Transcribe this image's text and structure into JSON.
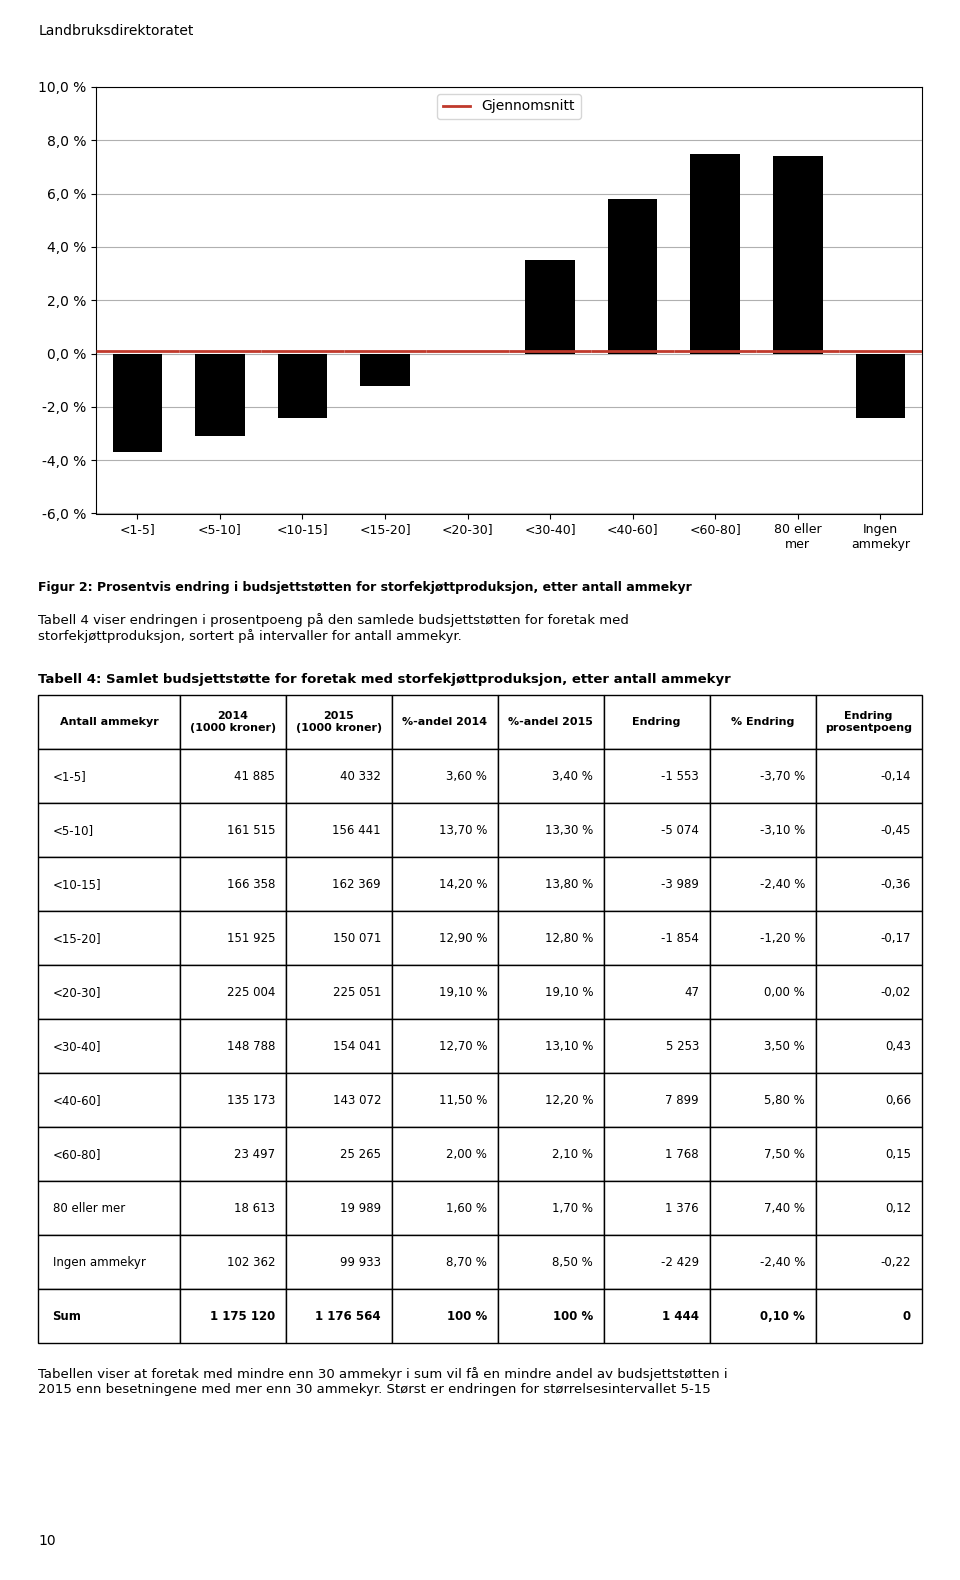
{
  "chart_data": [
    {
      "type": "bar",
      "title": "Figur 2: Prosentvis endring i budsjettstøtten for storfekjøttproduksjon, etter antall ammekyr",
      "annotations": [
        "Landbruksdirektoratet",
        "Tabell 4 viser endringen i prosentpoeng på den samlede budsjettstøtten for foretak med\nstorfekjøttproduksjon, sortert på intervaller for antall ammekyr."
      ],
      "categories": [
        "<1-5]",
        "<5-10]",
        "<10-15]",
        "<15-20]",
        "<20-30]",
        "<30-40]",
        "<40-60]",
        "<60-80]",
        "80 eller\nmer",
        "Ingen\nammekyr"
      ],
      "series": [
        {
          "type": "bar",
          "color": "#000000",
          "values": [
            -3.7,
            -3.1,
            -2.4,
            -1.2,
            0.0,
            3.5,
            5.8,
            7.5,
            7.4,
            -2.4
          ]
        },
        {
          "type": "line",
          "name": "Gjennomsnitt",
          "color": "#c0392b",
          "line_style": "solid",
          "values": [
            0.1,
            0.1,
            0.1,
            0.1,
            0.1,
            0.1,
            0.1,
            0.1,
            0.1,
            0.1
          ]
        }
      ],
      "ylim": [
        -6.0,
        10.0
      ],
      "yticks": [
        {
          "value": -6.0,
          "label": "-6,0 %"
        },
        {
          "value": -4.0,
          "label": "-4,0 %"
        },
        {
          "value": -2.0,
          "label": "-2,0 %"
        },
        {
          "value": 0.0,
          "label": "0,0 %"
        },
        {
          "value": 2.0,
          "label": "2,0 %"
        },
        {
          "value": 4.0,
          "label": "4,0 %"
        },
        {
          "value": 6.0,
          "label": "6,0 %"
        },
        {
          "value": 8.0,
          "label": "8,0 %"
        },
        {
          "value": 10.0,
          "label": "10,0 %"
        }
      ],
      "grid": true,
      "legend": "upper center"
    },
    {
      "type": "table",
      "title": "Tabell 4: Samlet budsjettstøtte for foretak med storfekjøttproduksjon, etter antall ammekyr",
      "annotations": [
        "Tabellen viser at foretak med mindre enn 30 ammekyr i sum vil få en mindre andel av budsjettstøtten i\n2015 enn besetningene med mer enn 30 ammekyr. Størst er endringen for størrelsesintervallet 5-15",
        "10"
      ],
      "xlabel": "Antall ammekyr",
      "categories": [
        "<1-5]",
        "<5-10]",
        "<10-15]",
        "<15-20]",
        "<20-30]",
        "<30-40]",
        "<40-60]",
        "<60-80]",
        "80 eller mer",
        "Ingen ammekyr",
        "Sum"
      ],
      "series": [
        {
          "name": "2014\n(1000 kroner)",
          "values": [
            41885,
            161515,
            166358,
            151925,
            225004,
            148788,
            135173,
            23497,
            18613,
            102362,
            1175120
          ],
          "value_labels": [
            "41 885",
            "161 515",
            "166 358",
            "151 925",
            "225 004",
            "148 788",
            "135 173",
            "23 497",
            "18 613",
            "102 362",
            "1 175 120"
          ]
        },
        {
          "name": "2015\n(1000 kroner)",
          "values": [
            40332,
            156441,
            162369,
            150071,
            225051,
            154041,
            143072,
            25265,
            19989,
            99933,
            1176564
          ],
          "value_labels": [
            "40 332",
            "156 441",
            "162 369",
            "150 071",
            "225 051",
            "154 041",
            "143 072",
            "25 265",
            "19 989",
            "99 933",
            "1 176 564"
          ]
        },
        {
          "name": "%-andel 2014",
          "values": [
            3.6,
            13.7,
            14.2,
            12.9,
            19.1,
            12.7,
            11.5,
            2.0,
            1.6,
            8.7,
            100
          ],
          "value_labels": [
            "3,60 %",
            "13,70 %",
            "14,20 %",
            "12,90 %",
            "19,10 %",
            "12,70 %",
            "11,50 %",
            "2,00 %",
            "1,60 %",
            "8,70 %",
            "100 %"
          ]
        },
        {
          "name": "%-andel 2015",
          "values": [
            3.4,
            13.3,
            13.8,
            12.8,
            19.1,
            13.1,
            12.2,
            2.1,
            1.7,
            8.5,
            100
          ],
          "value_labels": [
            "3,40 %",
            "13,30 %",
            "13,80 %",
            "12,80 %",
            "19,10 %",
            "13,10 %",
            "12,20 %",
            "2,10 %",
            "1,70 %",
            "8,50 %",
            "100 %"
          ]
        },
        {
          "name": "Endring",
          "values": [
            -1553,
            -5074,
            -3989,
            -1854,
            47,
            5253,
            7899,
            1768,
            1376,
            -2429,
            1444
          ],
          "value_labels": [
            "-1 553",
            "-5 074",
            "-3 989",
            "-1 854",
            "47",
            "5 253",
            "7 899",
            "1 768",
            "1 376",
            "-2 429",
            "1 444"
          ]
        },
        {
          "name": "% Endring",
          "values": [
            -3.7,
            -3.1,
            -2.4,
            -1.2,
            0.0,
            3.5,
            5.8,
            7.5,
            7.4,
            -2.4,
            0.1
          ],
          "value_labels": [
            "-3,70 %",
            "-3,10 %",
            "-2,40 %",
            "-1,20 %",
            "0,00 %",
            "3,50 %",
            "5,80 %",
            "7,50 %",
            "7,40 %",
            "-2,40 %",
            "0,10 %"
          ]
        },
        {
          "name": "Endring\nprosentpoeng",
          "values": [
            -0.14,
            -0.45,
            -0.36,
            -0.17,
            -0.02,
            0.43,
            0.66,
            0.15,
            0.12,
            -0.22,
            0
          ],
          "value_labels": [
            "-0,14",
            "-0,45",
            "-0,36",
            "-0,17",
            "-0,02",
            "0,43",
            "0,66",
            "0,15",
            "0,12",
            "-0,22",
            "0"
          ]
        }
      ]
    }
  ]
}
